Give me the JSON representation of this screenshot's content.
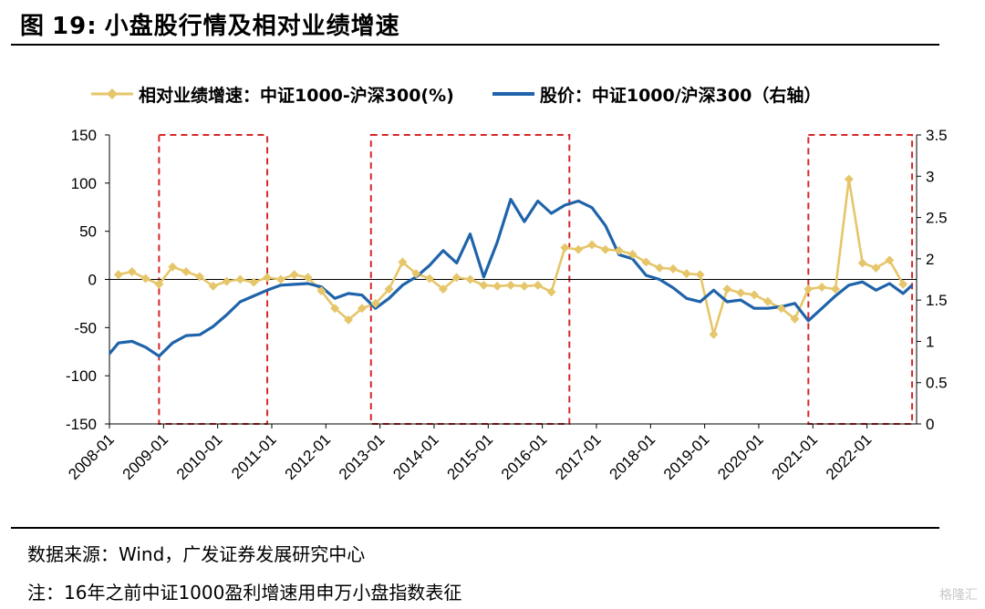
{
  "header": {
    "figure_label": "图",
    "figure_number": "19:",
    "title": "小盘股行情及相对业绩增速"
  },
  "footer": {
    "source": "数据来源：Wind，广发证券发展研究中心",
    "note": "注：16年之前中证1000盈利增速用申万小盘指数表征",
    "watermark": "格隆汇"
  },
  "colors": {
    "series_gold": "#E6C66A",
    "series_blue": "#1F63AA",
    "highlight_box": "#D62728",
    "axis": "#000000"
  },
  "chart_data": {
    "type": "line",
    "title": "小盘股行情及相对业绩增速",
    "legend_position": "top",
    "grid": false,
    "x_tick_labels": [
      "2008-01",
      "2009-01",
      "2010-01",
      "2011-01",
      "2012-01",
      "2013-01",
      "2014-01",
      "2015-01",
      "2016-01",
      "2017-01",
      "2018-01",
      "2019-01",
      "2020-01",
      "2021-01",
      "2022-01"
    ],
    "x_range": [
      "2008-01",
      "2022-11"
    ],
    "y_left": {
      "ticks": [
        "150",
        "100",
        "50",
        "0",
        "-50",
        "-100",
        "-150"
      ],
      "range": [
        -150,
        150
      ]
    },
    "y_right": {
      "ticks": [
        "3.5",
        "3",
        "2.5",
        "2",
        "1.5",
        "1",
        "0.5",
        "0"
      ],
      "range": [
        0,
        3.5
      ]
    },
    "highlight_periods": [
      {
        "start": "2008-12",
        "end": "2010-12"
      },
      {
        "start": "2012-11",
        "end": "2016-07"
      },
      {
        "start": "2020-12",
        "end": "2022-11"
      }
    ],
    "series": [
      {
        "name": "相对业绩增速：中证1000-沪深300(%)",
        "axis": "left",
        "marker": "diamond",
        "points": [
          [
            "2008-03",
            5
          ],
          [
            "2008-06",
            8
          ],
          [
            "2008-09",
            1
          ],
          [
            "2008-12",
            -5
          ],
          [
            "2009-03",
            13
          ],
          [
            "2009-06",
            8
          ],
          [
            "2009-09",
            3
          ],
          [
            "2009-12",
            -7
          ],
          [
            "2010-03",
            -2
          ],
          [
            "2010-06",
            0
          ],
          [
            "2010-09",
            -3
          ],
          [
            "2010-12",
            2
          ],
          [
            "2011-03",
            0
          ],
          [
            "2011-06",
            5
          ],
          [
            "2011-09",
            2
          ],
          [
            "2011-12",
            -12
          ],
          [
            "2012-03",
            -30
          ],
          [
            "2012-06",
            -42
          ],
          [
            "2012-09",
            -30
          ],
          [
            "2012-12",
            -25
          ],
          [
            "2013-03",
            -10
          ],
          [
            "2013-06",
            18
          ],
          [
            "2013-09",
            6
          ],
          [
            "2013-12",
            1
          ],
          [
            "2014-03",
            -10
          ],
          [
            "2014-06",
            2
          ],
          [
            "2014-09",
            0
          ],
          [
            "2014-12",
            -6
          ],
          [
            "2015-03",
            -7
          ],
          [
            "2015-06",
            -6
          ],
          [
            "2015-09",
            -7
          ],
          [
            "2015-12",
            -6
          ],
          [
            "2016-03",
            -13
          ],
          [
            "2016-06",
            33
          ],
          [
            "2016-09",
            31
          ],
          [
            "2016-12",
            36
          ],
          [
            "2017-03",
            31
          ],
          [
            "2017-06",
            30
          ],
          [
            "2017-09",
            26
          ],
          [
            "2017-12",
            18
          ],
          [
            "2018-03",
            12
          ],
          [
            "2018-06",
            11
          ],
          [
            "2018-09",
            6
          ],
          [
            "2018-12",
            5
          ],
          [
            "2019-03",
            -57
          ],
          [
            "2019-06",
            -10
          ],
          [
            "2019-09",
            -14
          ],
          [
            "2019-12",
            -16
          ],
          [
            "2020-03",
            -23
          ],
          [
            "2020-06",
            -30
          ],
          [
            "2020-09",
            -41
          ],
          [
            "2020-12",
            -10
          ],
          [
            "2021-03",
            -8
          ],
          [
            "2021-06",
            -10
          ],
          [
            "2021-09",
            104
          ],
          [
            "2021-12",
            17
          ],
          [
            "2022-03",
            12
          ],
          [
            "2022-06",
            20
          ],
          [
            "2022-09",
            -5
          ]
        ]
      },
      {
        "name": "股价：中证1000/沪深300（右轴）",
        "axis": "right",
        "marker": "none",
        "points": [
          [
            "2008-01",
            0.85
          ],
          [
            "2008-03",
            0.98
          ],
          [
            "2008-06",
            1.0
          ],
          [
            "2008-09",
            0.93
          ],
          [
            "2008-12",
            0.82
          ],
          [
            "2009-03",
            0.98
          ],
          [
            "2009-06",
            1.07
          ],
          [
            "2009-09",
            1.08
          ],
          [
            "2009-12",
            1.18
          ],
          [
            "2010-03",
            1.32
          ],
          [
            "2010-06",
            1.48
          ],
          [
            "2010-09",
            1.55
          ],
          [
            "2010-12",
            1.62
          ],
          [
            "2011-03",
            1.68
          ],
          [
            "2011-06",
            1.69
          ],
          [
            "2011-09",
            1.7
          ],
          [
            "2011-12",
            1.66
          ],
          [
            "2012-03",
            1.52
          ],
          [
            "2012-06",
            1.58
          ],
          [
            "2012-09",
            1.56
          ],
          [
            "2012-12",
            1.4
          ],
          [
            "2013-03",
            1.52
          ],
          [
            "2013-06",
            1.68
          ],
          [
            "2013-09",
            1.78
          ],
          [
            "2013-12",
            1.92
          ],
          [
            "2014-03",
            2.1
          ],
          [
            "2014-06",
            1.95
          ],
          [
            "2014-09",
            2.3
          ],
          [
            "2014-12",
            1.78
          ],
          [
            "2015-03",
            2.2
          ],
          [
            "2015-06",
            2.72
          ],
          [
            "2015-09",
            2.45
          ],
          [
            "2015-12",
            2.7
          ],
          [
            "2016-03",
            2.55
          ],
          [
            "2016-06",
            2.65
          ],
          [
            "2016-09",
            2.7
          ],
          [
            "2016-12",
            2.62
          ],
          [
            "2017-03",
            2.4
          ],
          [
            "2017-06",
            2.05
          ],
          [
            "2017-09",
            2.0
          ],
          [
            "2017-12",
            1.8
          ],
          [
            "2018-03",
            1.75
          ],
          [
            "2018-06",
            1.65
          ],
          [
            "2018-09",
            1.52
          ],
          [
            "2018-12",
            1.48
          ],
          [
            "2019-03",
            1.62
          ],
          [
            "2019-06",
            1.48
          ],
          [
            "2019-09",
            1.5
          ],
          [
            "2019-12",
            1.4
          ],
          [
            "2020-03",
            1.4
          ],
          [
            "2020-06",
            1.42
          ],
          [
            "2020-09",
            1.46
          ],
          [
            "2020-12",
            1.25
          ],
          [
            "2021-03",
            1.4
          ],
          [
            "2021-06",
            1.55
          ],
          [
            "2021-09",
            1.68
          ],
          [
            "2021-12",
            1.72
          ],
          [
            "2022-03",
            1.62
          ],
          [
            "2022-06",
            1.7
          ],
          [
            "2022-09",
            1.58
          ],
          [
            "2022-11",
            1.68
          ]
        ]
      }
    ]
  }
}
